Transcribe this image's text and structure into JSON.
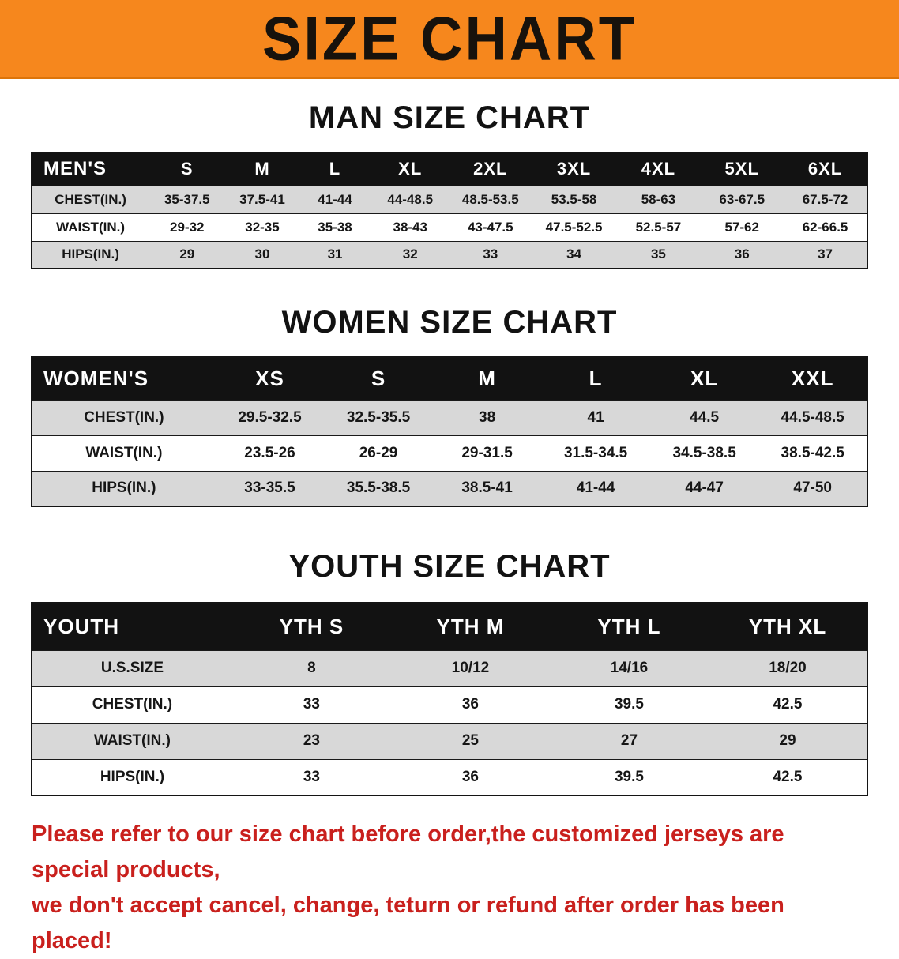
{
  "colors": {
    "banner_bg": "#F6871D",
    "header_bg": "#121212",
    "row_alt_bg": "#D8D8D8",
    "footer_text": "#C9201D"
  },
  "banner": {
    "title": "SIZE CHART"
  },
  "sections": [
    {
      "id": "men",
      "heading": "MAN SIZE CHART",
      "table": {
        "header": [
          "MEN'S",
          "S",
          "M",
          "L",
          "XL",
          "2XL",
          "3XL",
          "4XL",
          "5XL",
          "6XL"
        ],
        "rows": [
          [
            "CHEST(IN.)",
            "35-37.5",
            "37.5-41",
            "41-44",
            "44-48.5",
            "48.5-53.5",
            "53.5-58",
            "58-63",
            "63-67.5",
            "67.5-72"
          ],
          [
            "WAIST(IN.)",
            "29-32",
            "32-35",
            "35-38",
            "38-43",
            "43-47.5",
            "47.5-52.5",
            "52.5-57",
            "57-62",
            "62-66.5"
          ],
          [
            "HIPS(IN.)",
            "29",
            "30",
            "31",
            "32",
            "33",
            "34",
            "35",
            "36",
            "37"
          ]
        ]
      }
    },
    {
      "id": "women",
      "heading": "WOMEN SIZE CHART",
      "table": {
        "header": [
          "WOMEN'S",
          "XS",
          "S",
          "M",
          "L",
          "XL",
          "XXL"
        ],
        "rows": [
          [
            "CHEST(IN.)",
            "29.5-32.5",
            "32.5-35.5",
            "38",
            "41",
            "44.5",
            "44.5-48.5"
          ],
          [
            "WAIST(IN.)",
            "23.5-26",
            "26-29",
            "29-31.5",
            "31.5-34.5",
            "34.5-38.5",
            "38.5-42.5"
          ],
          [
            "HIPS(IN.)",
            "33-35.5",
            "35.5-38.5",
            "38.5-41",
            "41-44",
            "44-47",
            "47-50"
          ]
        ]
      }
    },
    {
      "id": "youth",
      "heading": "YOUTH SIZE CHART",
      "table": {
        "header": [
          "YOUTH",
          "YTH S",
          "YTH M",
          "YTH L",
          "YTH XL"
        ],
        "rows": [
          [
            "U.S.SIZE",
            "8",
            "10/12",
            "14/16",
            "18/20"
          ],
          [
            "CHEST(IN.)",
            "33",
            "36",
            "39.5",
            "42.5"
          ],
          [
            "WAIST(IN.)",
            "23",
            "25",
            "27",
            "29"
          ],
          [
            "HIPS(IN.)",
            "33",
            "36",
            "39.5",
            "42.5"
          ]
        ]
      }
    }
  ],
  "footer": {
    "lines": [
      "Please refer to our size chart before order,the customized jerseys are special products,",
      "we don't accept cancel, change, teturn or refund after order has been placed!"
    ]
  }
}
